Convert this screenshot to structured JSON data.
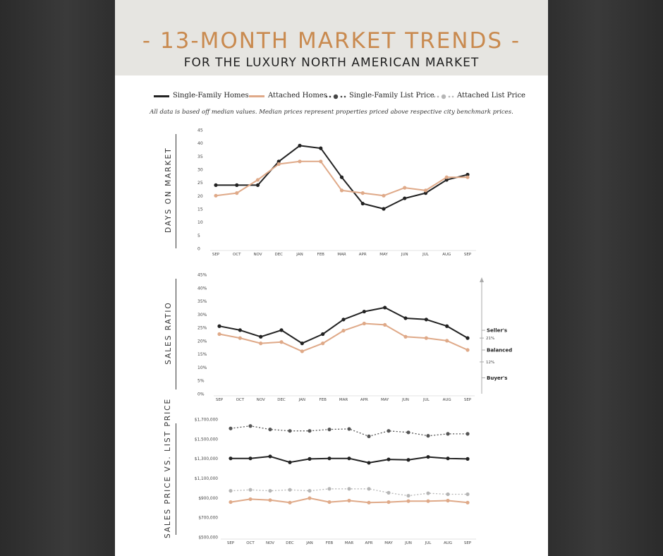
{
  "header": {
    "title": "- 13-MONTH MARKET TRENDS -",
    "subtitle": "FOR THE LUXURY NORTH AMERICAN MARKET"
  },
  "legend": {
    "single_family": "Single-Family Homes",
    "attached": "Attached Homes",
    "sf_list": "Single-Family List Price",
    "att_list": "Attached List Price"
  },
  "note": "All data is based off median values. Median prices represent properties priced above respective city benchmark prices.",
  "colors": {
    "single_family": "#222222",
    "attached": "#dfa988",
    "sf_list": "#555555",
    "att_list": "#b5b5b5",
    "title": "#c98a4f"
  },
  "chart_data": [
    {
      "type": "line",
      "ylabel": "DAYS ON MARKET",
      "categories": [
        "SEP",
        "OCT",
        "NOV",
        "DEC",
        "JAN",
        "FEB",
        "MAR",
        "APR",
        "MAY",
        "JUN",
        "JUL",
        "AUG",
        "SEP"
      ],
      "ylim": [
        0,
        45
      ],
      "yticks": [
        0,
        5,
        10,
        15,
        20,
        25,
        30,
        35,
        40,
        45
      ],
      "ytick_labels": [
        "0",
        "5",
        "10",
        "15",
        "20",
        "25",
        "30",
        "35",
        "40",
        "45"
      ],
      "series": [
        {
          "name": "Single-Family Homes",
          "values": [
            24,
            24,
            24,
            33,
            39,
            38,
            27,
            17,
            15,
            19,
            21,
            26,
            28
          ]
        },
        {
          "name": "Attached Homes",
          "values": [
            20,
            21,
            26,
            32,
            33,
            33,
            22,
            21,
            20,
            23,
            22,
            27,
            27
          ]
        }
      ]
    },
    {
      "type": "line",
      "ylabel": "SALES RATIO",
      "categories": [
        "SEP",
        "OCT",
        "NOV",
        "DEC",
        "JAN",
        "FEB",
        "MAR",
        "APR",
        "MAY",
        "JUN",
        "JUL",
        "AUG",
        "SEP"
      ],
      "ylim": [
        0,
        45
      ],
      "yticks": [
        0,
        5,
        10,
        15,
        20,
        25,
        30,
        35,
        40,
        45
      ],
      "ytick_labels": [
        "0%",
        "5%",
        "10%",
        "15%",
        "20%",
        "25%",
        "30%",
        "35%",
        "40%",
        "45%"
      ],
      "series": [
        {
          "name": "Single-Family Homes",
          "values": [
            25.5,
            24,
            21.5,
            24,
            19,
            22.5,
            28,
            31,
            32.5,
            28.5,
            28,
            25.5,
            21
          ]
        },
        {
          "name": "Attached Homes",
          "values": [
            22.5,
            21,
            19,
            19.5,
            16,
            19,
            23.8,
            26.5,
            26,
            21.5,
            21,
            20,
            16.5
          ]
        }
      ],
      "market_zones": {
        "sellers": "Seller's",
        "balanced": "Balanced",
        "buyers": "Buyer's",
        "upper_threshold": "21%",
        "lower_threshold": "12%"
      }
    },
    {
      "type": "line",
      "ylabel": "SALES PRICE VS. LIST PRICE",
      "categories": [
        "SEP",
        "OCT",
        "NOV",
        "DEC",
        "JAN",
        "FEB",
        "MAR",
        "APR",
        "MAY",
        "JUN",
        "JUL",
        "AUG",
        "SEP"
      ],
      "ylim": [
        500000,
        1700000
      ],
      "yticks": [
        500000,
        700000,
        900000,
        1100000,
        1300000,
        1500000,
        1700000
      ],
      "ytick_labels": [
        "$500,000",
        "$700,000",
        "$900,000",
        "$1,100,000",
        "$1,300,000",
        "$1,500,000",
        "$1,700,000"
      ],
      "series": [
        {
          "name": "Single-Family List Price",
          "values": [
            1605000,
            1630000,
            1595000,
            1580000,
            1580000,
            1595000,
            1600000,
            1525000,
            1580000,
            1565000,
            1530000,
            1550000,
            1550000
          ]
        },
        {
          "name": "Single-Family Homes",
          "values": [
            1300000,
            1300000,
            1320000,
            1260000,
            1295000,
            1300000,
            1300000,
            1255000,
            1290000,
            1285000,
            1315000,
            1300000,
            1295000
          ]
        },
        {
          "name": "Attached List Price",
          "values": [
            970000,
            980000,
            970000,
            980000,
            970000,
            990000,
            990000,
            990000,
            950000,
            920000,
            945000,
            935000,
            935000
          ]
        },
        {
          "name": "Attached Homes",
          "values": [
            855000,
            885000,
            875000,
            850000,
            895000,
            855000,
            870000,
            850000,
            855000,
            865000,
            865000,
            870000,
            850000
          ]
        }
      ]
    }
  ]
}
